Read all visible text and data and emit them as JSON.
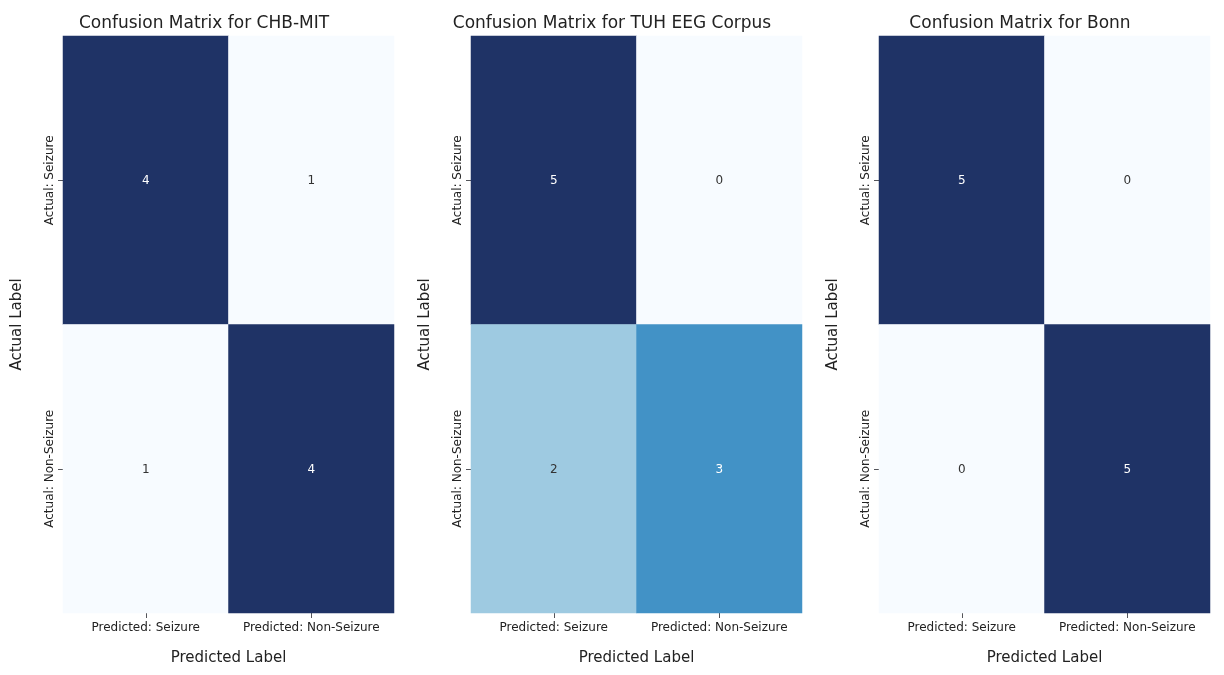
{
  "chart_data": [
    {
      "type": "heatmap",
      "title": "Confusion Matrix for CHB-MIT",
      "xlabel": "Predicted Label",
      "ylabel": "Actual Label",
      "categories": [
        "Predicted: Seizure",
        "Predicted: Non-Seizure"
      ],
      "y_categories": [
        "Actual: Seizure",
        "Actual: Non-Seizure"
      ],
      "cells": [
        [
          4,
          1
        ],
        [
          1,
          4
        ]
      ],
      "data_labels": true
    },
    {
      "type": "heatmap",
      "title": "Confusion Matrix for TUH EEG Corpus",
      "xlabel": "Predicted Label",
      "ylabel": "Actual Label",
      "categories": [
        "Predicted: Seizure",
        "Predicted: Non-Seizure"
      ],
      "y_categories": [
        "Actual: Seizure",
        "Actual: Non-Seizure"
      ],
      "cells": [
        [
          5,
          0
        ],
        [
          2,
          3
        ]
      ],
      "data_labels": true
    },
    {
      "type": "heatmap",
      "title": "Confusion Matrix for Bonn",
      "xlabel": "Predicted Label",
      "ylabel": "Actual Label",
      "categories": [
        "Predicted: Seizure",
        "Predicted: Non-Seizure"
      ],
      "y_categories": [
        "Actual: Seizure",
        "Actual: Non-Seizure"
      ],
      "cells": [
        [
          5,
          0
        ],
        [
          0,
          5
        ]
      ],
      "data_labels": true
    }
  ]
}
